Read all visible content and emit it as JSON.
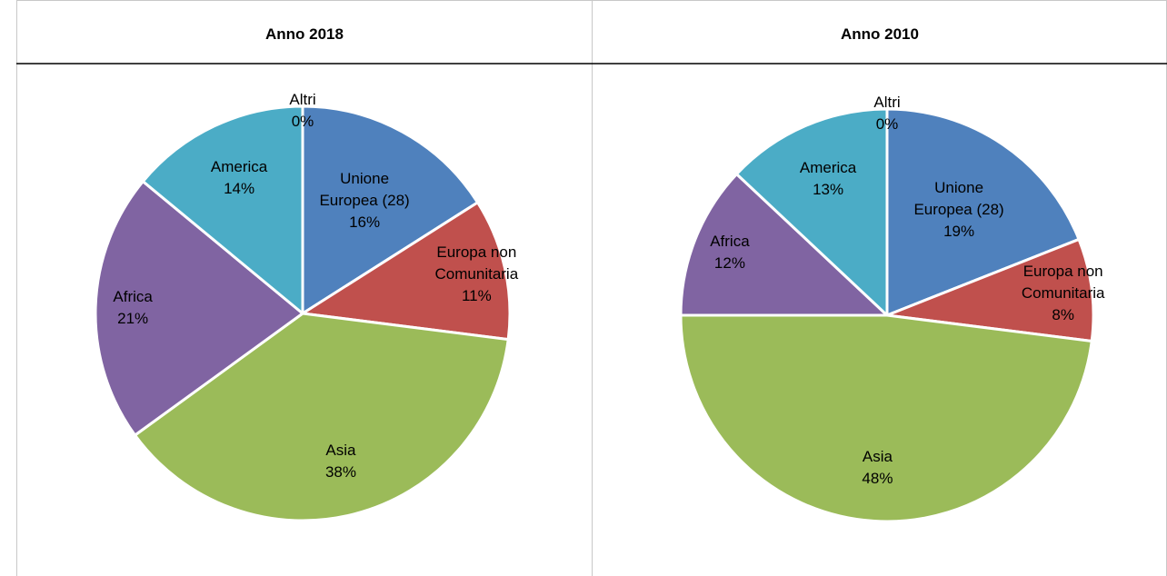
{
  "chart_data": [
    {
      "type": "pie",
      "title": "Anno 2018",
      "categories": [
        "Unione Europea (28)",
        "Europa non Comunitaria",
        "Asia",
        "Africa",
        "America",
        "Altri"
      ],
      "values": [
        16,
        11,
        38,
        21,
        14,
        0
      ],
      "value_labels": [
        "16%",
        "11%",
        "38%",
        "21%",
        "14%",
        "0%"
      ],
      "colors": [
        "#4f81bd",
        "#c0504d",
        "#9bbb59",
        "#8064a2",
        "#4bacc6",
        "#f79646"
      ]
    },
    {
      "type": "pie",
      "title": "Anno 2010",
      "categories": [
        "Unione Europea (28)",
        "Europa non Comunitaria",
        "Asia",
        "Africa",
        "America",
        "Altri"
      ],
      "values": [
        19,
        8,
        48,
        12,
        13,
        0
      ],
      "value_labels": [
        "19%",
        "8%",
        "48%",
        "12%",
        "13%",
        "0%"
      ],
      "colors": [
        "#4f81bd",
        "#c0504d",
        "#9bbb59",
        "#8064a2",
        "#4bacc6",
        "#f79646"
      ]
    }
  ]
}
